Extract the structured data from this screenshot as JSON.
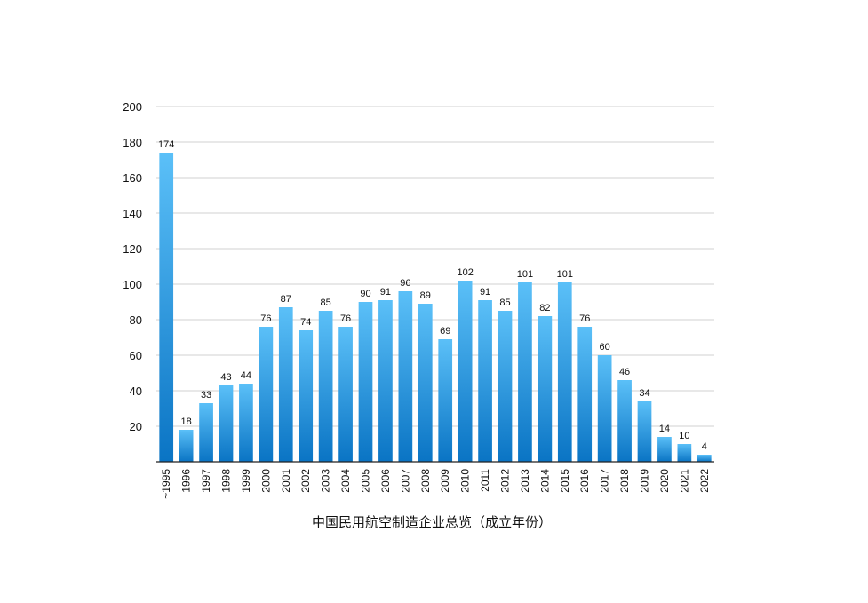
{
  "chart_data": {
    "type": "bar",
    "title": "中国民用航空制造企业总览（成立年份）",
    "xlabel": "",
    "ylabel": "",
    "ylim": [
      0,
      200
    ],
    "yticks": [
      20,
      40,
      60,
      80,
      100,
      120,
      140,
      160,
      180,
      200
    ],
    "grid": true,
    "categories": [
      "~1995",
      "1996",
      "1997",
      "1998",
      "1999",
      "2000",
      "2001",
      "2002",
      "2003",
      "2004",
      "2005",
      "2006",
      "2007",
      "2008",
      "2009",
      "2010",
      "2011",
      "2012",
      "2013",
      "2014",
      "2015",
      "2016",
      "2017",
      "2018",
      "2019",
      "2020",
      "2021",
      "2022"
    ],
    "values": [
      174,
      18,
      33,
      43,
      44,
      76,
      87,
      74,
      85,
      76,
      90,
      91,
      96,
      89,
      69,
      102,
      91,
      85,
      101,
      82,
      101,
      76,
      60,
      46,
      34,
      14,
      10,
      4
    ],
    "colors": {
      "bar_top": "#5bc0f8",
      "bar_bottom": "#0a74c4",
      "grid": "#d0d0d0",
      "axis": "#222222"
    }
  }
}
